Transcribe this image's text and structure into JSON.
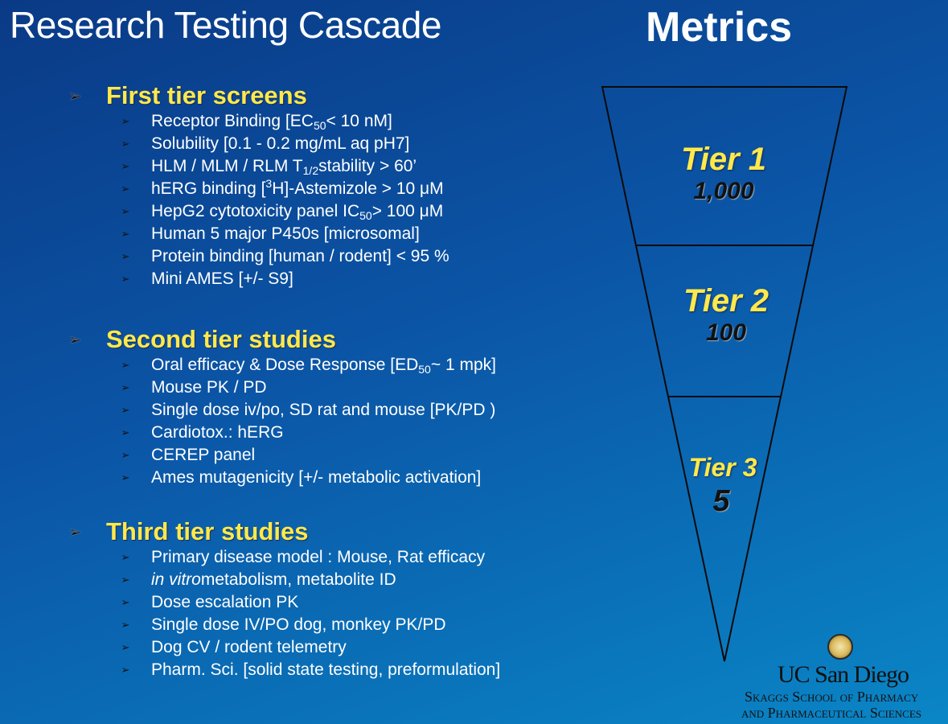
{
  "title": "Research Testing Cascade",
  "metrics_title": "Metrics",
  "colors": {
    "heading": "#ffe94a",
    "text": "#ffffff",
    "bullet": "#111111"
  },
  "sections": [
    {
      "label": "First tier screens",
      "items": [
        {
          "pre": "Receptor Binding [EC",
          "sub": "50",
          "post": " < 10 nM]"
        },
        {
          "text": "Solubility [0.1 - 0.2 mg/mL aq pH7]"
        },
        {
          "pre": "HLM / MLM / RLM T",
          "sub": "1/2",
          "post": " stability > 60’"
        },
        {
          "pre": "hERG binding [",
          "sup": "3",
          "post": "H]-Astemizole > 10 μM"
        },
        {
          "pre": "HepG2 cytotoxicity panel IC",
          "sub": "50",
          "post": " > 100 μM"
        },
        {
          "text": "Human 5 major P450s [microsomal]"
        },
        {
          "text": "Protein binding [human / rodent] < 95 %"
        },
        {
          "text": "Mini AMES [+/- S9]"
        }
      ]
    },
    {
      "label": "Second tier studies",
      "items": [
        {
          "pre": "Oral efficacy & Dose Response [ED",
          "sub": "50",
          "post": " ~ 1 mpk]"
        },
        {
          "text": "Mouse PK / PD"
        },
        {
          "text": "Single dose iv/po, SD rat and mouse [PK/PD )"
        },
        {
          "text": "Cardiotox.: hERG"
        },
        {
          "text": "CEREP panel"
        },
        {
          "text": "Ames mutagenicity [+/- metabolic activation]"
        }
      ]
    },
    {
      "label": "Third tier studies",
      "items": [
        {
          "text": "Primary disease model : Mouse, Rat efficacy"
        },
        {
          "ital": "in vitro",
          "post": " metabolism, metabolite ID"
        },
        {
          "text": "Dose escalation PK"
        },
        {
          "text": "Single dose IV/PO dog, monkey PK/PD"
        },
        {
          "text": "Dog CV / rodent telemetry"
        },
        {
          "text": "Pharm. Sci. [solid state testing, preformulation]"
        }
      ]
    }
  ],
  "funnel": {
    "tiers": [
      {
        "name": "Tier 1",
        "count": "1,000"
      },
      {
        "name": "Tier 2",
        "count": "100"
      },
      {
        "name": "Tier 3",
        "count": "5"
      }
    ]
  },
  "logo": {
    "line1": "UC San Diego",
    "line2": "Skaggs School of Pharmacy",
    "line3": "and Pharmaceutical Sciences"
  }
}
